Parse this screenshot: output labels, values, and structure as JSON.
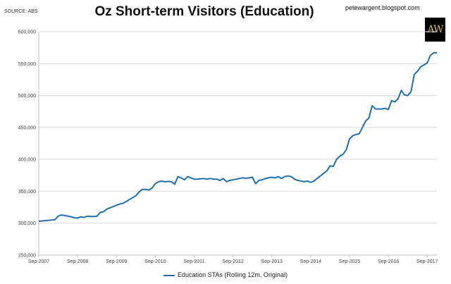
{
  "header": {
    "title": "Oz Short-term Visitors (Education)",
    "source": "SOURCE: ABS",
    "website": "petewargent.blogspot.com",
    "logo_text": "AW"
  },
  "chart_data": {
    "type": "line",
    "title": "Oz Short-term Visitors (Education)",
    "xlabel": "",
    "ylabel": "",
    "ylim": [
      250000,
      600000
    ],
    "yticks": [
      250000,
      300000,
      350000,
      400000,
      450000,
      500000,
      550000,
      600000
    ],
    "ytick_labels": [
      "250,000",
      "300,000",
      "350,000",
      "400,000",
      "450,000",
      "500,000",
      "550,000",
      "600,000"
    ],
    "xtick_labels": [
      "Sep-2007",
      "Sep-2008",
      "Sep-2009",
      "Sep-2010",
      "Sep-2011",
      "Sep-2012",
      "Sep-2013",
      "Sep-2014",
      "Sep-2015",
      "Sep-2016",
      "Sep-2017"
    ],
    "grid": true,
    "legend_position": "bottom",
    "series": [
      {
        "name": "Education STAs (Rolling 12m, Original)",
        "color": "#1f6fb2",
        "start": "Sep-2007",
        "frequency": "monthly",
        "values": [
          303000,
          303500,
          304000,
          304500,
          305000,
          305500,
          311000,
          313000,
          312000,
          311000,
          310000,
          308500,
          308000,
          310000,
          309000,
          311000,
          310500,
          310500,
          311000,
          317000,
          318000,
          322000,
          324000,
          326000,
          328000,
          330000,
          331000,
          334000,
          337000,
          340000,
          343000,
          349000,
          353000,
          353000,
          352000,
          355000,
          362000,
          365000,
          366000,
          365000,
          365500,
          365000,
          361000,
          373000,
          371000,
          368000,
          373000,
          371000,
          369000,
          369000,
          369500,
          370000,
          369000,
          370000,
          369000,
          369000,
          367000,
          370000,
          365000,
          367000,
          368000,
          369000,
          370000,
          371000,
          370500,
          371000,
          372000,
          362000,
          367000,
          368000,
          370000,
          371000,
          372000,
          371000,
          373000,
          370000,
          373000,
          374000,
          373000,
          369000,
          367000,
          366000,
          365000,
          366000,
          364000,
          366000,
          370000,
          374000,
          378000,
          382000,
          390000,
          389000,
          400000,
          405000,
          408000,
          415000,
          432000,
          437000,
          439000,
          440000,
          450000,
          460000,
          465000,
          484000,
          479000,
          479000,
          479000,
          480000,
          478000,
          492000,
          490000,
          495000,
          508000,
          501000,
          500000,
          506000,
          533000,
          538000,
          545000,
          548000,
          551000,
          563000,
          567000,
          567000
        ]
      }
    ]
  },
  "legend": {
    "items": [
      {
        "label": "Education STAs (Rolling 12m, Original)",
        "color": "#1f6fb2"
      }
    ]
  }
}
